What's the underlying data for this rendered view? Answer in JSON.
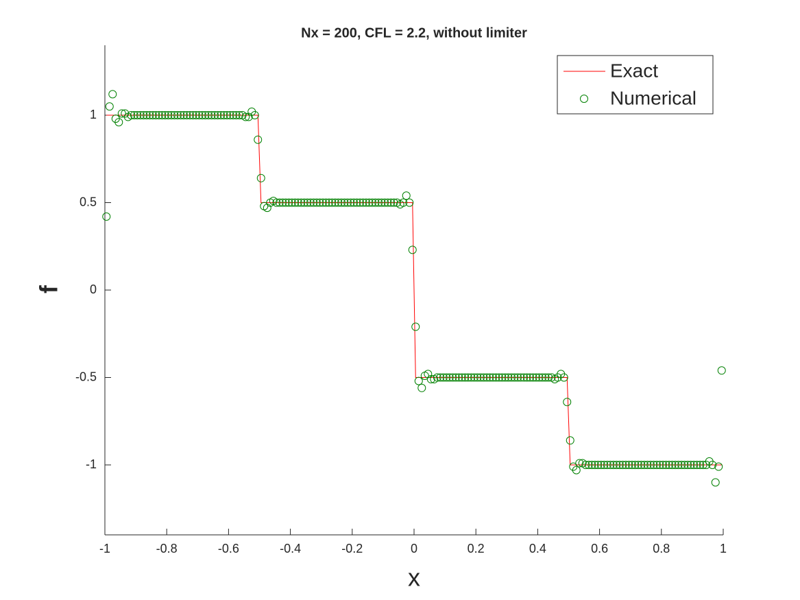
{
  "chart_data": {
    "type": "line_scatter",
    "title": "Nx = 200, CFL = 2.2, without limiter",
    "xlabel": "x",
    "ylabel": "f",
    "x": [
      -0.995,
      -0.985,
      -0.975,
      -0.965,
      -0.955,
      -0.945,
      -0.935,
      -0.925,
      -0.915,
      -0.905,
      -0.895,
      -0.885,
      -0.875,
      -0.865,
      -0.855,
      -0.845,
      -0.835,
      -0.825,
      -0.815,
      -0.805,
      -0.795,
      -0.785,
      -0.775,
      -0.765,
      -0.755,
      -0.745,
      -0.735,
      -0.725,
      -0.715,
      -0.705,
      -0.695,
      -0.685,
      -0.675,
      -0.665,
      -0.655,
      -0.645,
      -0.635,
      -0.625,
      -0.615,
      -0.605,
      -0.595,
      -0.585,
      -0.575,
      -0.565,
      -0.555,
      -0.545,
      -0.535,
      -0.525,
      -0.515,
      -0.505,
      -0.495,
      -0.485,
      -0.475,
      -0.465,
      -0.455,
      -0.445,
      -0.435,
      -0.425,
      -0.415,
      -0.405,
      -0.395,
      -0.385,
      -0.375,
      -0.365,
      -0.355,
      -0.345,
      -0.335,
      -0.325,
      -0.315,
      -0.305,
      -0.295,
      -0.285,
      -0.275,
      -0.265,
      -0.255,
      -0.245,
      -0.235,
      -0.225,
      -0.215,
      -0.205,
      -0.195,
      -0.185,
      -0.175,
      -0.165,
      -0.155,
      -0.145,
      -0.135,
      -0.125,
      -0.115,
      -0.105,
      -0.095,
      -0.085,
      -0.075,
      -0.065,
      -0.055,
      -0.045,
      -0.035,
      -0.025,
      -0.015,
      -0.005,
      0.005,
      0.015,
      0.025,
      0.035,
      0.045,
      0.055,
      0.065,
      0.075,
      0.085,
      0.095,
      0.105,
      0.115,
      0.125,
      0.135,
      0.145,
      0.155,
      0.165,
      0.175,
      0.185,
      0.195,
      0.205,
      0.215,
      0.225,
      0.235,
      0.245,
      0.255,
      0.265,
      0.275,
      0.285,
      0.295,
      0.305,
      0.315,
      0.325,
      0.335,
      0.345,
      0.355,
      0.365,
      0.375,
      0.385,
      0.395,
      0.405,
      0.415,
      0.425,
      0.435,
      0.445,
      0.455,
      0.465,
      0.475,
      0.485,
      0.495,
      0.505,
      0.515,
      0.525,
      0.535,
      0.545,
      0.555,
      0.565,
      0.575,
      0.585,
      0.595,
      0.605,
      0.615,
      0.625,
      0.635,
      0.645,
      0.655,
      0.665,
      0.675,
      0.685,
      0.695,
      0.705,
      0.715,
      0.725,
      0.735,
      0.745,
      0.755,
      0.765,
      0.775,
      0.785,
      0.795,
      0.805,
      0.815,
      0.825,
      0.835,
      0.845,
      0.855,
      0.865,
      0.875,
      0.885,
      0.895,
      0.905,
      0.915,
      0.925,
      0.935,
      0.945,
      0.955,
      0.965,
      0.975,
      0.985,
      0.995
    ],
    "series": [
      {
        "name": "Exact",
        "color": "#ff0000",
        "style": "line",
        "values": [
          1,
          1,
          1,
          1,
          1,
          1,
          1,
          1,
          1,
          1,
          1,
          1,
          1,
          1,
          1,
          1,
          1,
          1,
          1,
          1,
          1,
          1,
          1,
          1,
          1,
          1,
          1,
          1,
          1,
          1,
          1,
          1,
          1,
          1,
          1,
          1,
          1,
          1,
          1,
          1,
          1,
          1,
          1,
          1,
          1,
          1,
          1,
          1,
          1,
          1,
          0.5,
          0.5,
          0.5,
          0.5,
          0.5,
          0.5,
          0.5,
          0.5,
          0.5,
          0.5,
          0.5,
          0.5,
          0.5,
          0.5,
          0.5,
          0.5,
          0.5,
          0.5,
          0.5,
          0.5,
          0.5,
          0.5,
          0.5,
          0.5,
          0.5,
          0.5,
          0.5,
          0.5,
          0.5,
          0.5,
          0.5,
          0.5,
          0.5,
          0.5,
          0.5,
          0.5,
          0.5,
          0.5,
          0.5,
          0.5,
          0.5,
          0.5,
          0.5,
          0.5,
          0.5,
          0.5,
          0.5,
          0.5,
          0.5,
          0.5,
          -0.5,
          -0.5,
          -0.5,
          -0.5,
          -0.5,
          -0.5,
          -0.5,
          -0.5,
          -0.5,
          -0.5,
          -0.5,
          -0.5,
          -0.5,
          -0.5,
          -0.5,
          -0.5,
          -0.5,
          -0.5,
          -0.5,
          -0.5,
          -0.5,
          -0.5,
          -0.5,
          -0.5,
          -0.5,
          -0.5,
          -0.5,
          -0.5,
          -0.5,
          -0.5,
          -0.5,
          -0.5,
          -0.5,
          -0.5,
          -0.5,
          -0.5,
          -0.5,
          -0.5,
          -0.5,
          -0.5,
          -0.5,
          -0.5,
          -0.5,
          -0.5,
          -0.5,
          -0.5,
          -0.5,
          -0.5,
          -0.5,
          -0.5,
          -1,
          -1,
          -1,
          -1,
          -1,
          -1,
          -1,
          -1,
          -1,
          -1,
          -1,
          -1,
          -1,
          -1,
          -1,
          -1,
          -1,
          -1,
          -1,
          -1,
          -1,
          -1,
          -1,
          -1,
          -1,
          -1,
          -1,
          -1,
          -1,
          -1,
          -1,
          -1,
          -1,
          -1,
          -1,
          -1,
          -1,
          -1,
          -1,
          -1,
          -1,
          -1,
          -1,
          -1,
          -1,
          -1,
          -1,
          -1,
          -1,
          -1
        ]
      },
      {
        "name": "Numerical",
        "color": "#008000",
        "style": "marker",
        "values": [
          0.42,
          1.05,
          1.12,
          0.98,
          0.96,
          1.01,
          1.01,
          0.99,
          1,
          1,
          1,
          1,
          1,
          1,
          1,
          1,
          1,
          1,
          1,
          1,
          1,
          1,
          1,
          1,
          1,
          1,
          1,
          1,
          1,
          1,
          1,
          1,
          1,
          1,
          1,
          1,
          1,
          1,
          1,
          1,
          1,
          1,
          1,
          1,
          1,
          0.99,
          0.99,
          1.02,
          1,
          0.86,
          0.64,
          0.48,
          0.47,
          0.5,
          0.51,
          0.5,
          0.5,
          0.5,
          0.5,
          0.5,
          0.5,
          0.5,
          0.5,
          0.5,
          0.5,
          0.5,
          0.5,
          0.5,
          0.5,
          0.5,
          0.5,
          0.5,
          0.5,
          0.5,
          0.5,
          0.5,
          0.5,
          0.5,
          0.5,
          0.5,
          0.5,
          0.5,
          0.5,
          0.5,
          0.5,
          0.5,
          0.5,
          0.5,
          0.5,
          0.5,
          0.5,
          0.5,
          0.5,
          0.5,
          0.5,
          0.49,
          0.5,
          0.54,
          0.5,
          0.23,
          -0.21,
          -0.52,
          -0.56,
          -0.49,
          -0.48,
          -0.51,
          -0.51,
          -0.5,
          -0.5,
          -0.5,
          -0.5,
          -0.5,
          -0.5,
          -0.5,
          -0.5,
          -0.5,
          -0.5,
          -0.5,
          -0.5,
          -0.5,
          -0.5,
          -0.5,
          -0.5,
          -0.5,
          -0.5,
          -0.5,
          -0.5,
          -0.5,
          -0.5,
          -0.5,
          -0.5,
          -0.5,
          -0.5,
          -0.5,
          -0.5,
          -0.5,
          -0.5,
          -0.5,
          -0.5,
          -0.5,
          -0.5,
          -0.5,
          -0.5,
          -0.5,
          -0.5,
          -0.51,
          -0.5,
          -0.48,
          -0.5,
          -0.64,
          -0.86,
          -1.01,
          -1.03,
          -0.99,
          -0.99,
          -1,
          -1,
          -1,
          -1,
          -1,
          -1,
          -1,
          -1,
          -1,
          -1,
          -1,
          -1,
          -1,
          -1,
          -1,
          -1,
          -1,
          -1,
          -1,
          -1,
          -1,
          -1,
          -1,
          -1,
          -1,
          -1,
          -1,
          -1,
          -1,
          -1,
          -1,
          -1,
          -1,
          -1,
          -1,
          -1,
          -1,
          -1,
          -1,
          -1,
          -0.98,
          -1,
          -1.1,
          -1.01,
          -0.46
        ]
      }
    ],
    "xlim": [
      -1,
      1
    ],
    "xticks": [
      -1,
      -0.8,
      -0.6,
      -0.4,
      -0.2,
      0,
      0.2,
      0.4,
      0.6,
      0.8,
      1
    ],
    "ylim": [
      -1.4,
      1.4
    ],
    "yticks": [
      -1,
      -0.5,
      0,
      0.5,
      1
    ],
    "grid": false,
    "legend": "northeast"
  }
}
